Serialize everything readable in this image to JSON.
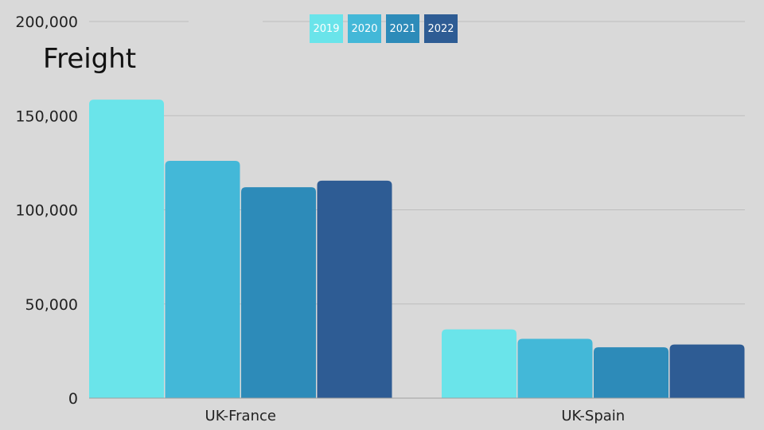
{
  "chart_data": {
    "type": "bar",
    "title": "Freight",
    "categories": [
      "UK-France",
      "UK-Spain"
    ],
    "series": [
      {
        "name": "2019",
        "color": "#6ae4ea",
        "values": [
          158500,
          36500
        ]
      },
      {
        "name": "2020",
        "color": "#43b8d8",
        "values": [
          126000,
          31500
        ]
      },
      {
        "name": "2021",
        "color": "#2d8bb9",
        "values": [
          112000,
          27000
        ]
      },
      {
        "name": "2022",
        "color": "#2e5c94",
        "values": [
          115500,
          28500
        ]
      }
    ],
    "yticks": [
      0,
      50000,
      100000,
      150000,
      200000
    ],
    "ytick_labels": [
      "0",
      "50,000",
      "100,000",
      "150,000",
      "200,000"
    ],
    "ylim": [
      0,
      200000
    ],
    "grid": true,
    "legend_position": "top-center",
    "xlabel": "",
    "ylabel": ""
  }
}
